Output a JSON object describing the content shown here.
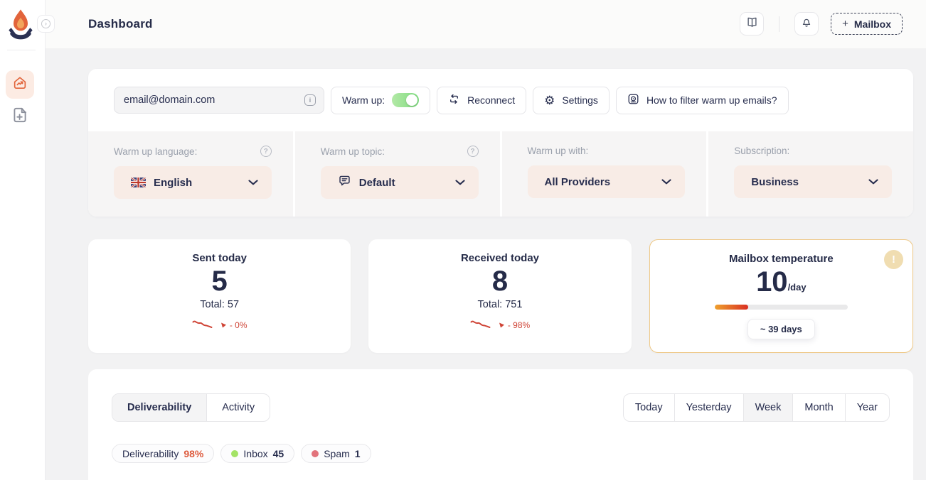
{
  "colors": {
    "accent_orange": "#e2643b",
    "navy_text": "#252b48",
    "toggle_green": "#7fdb80",
    "trend_red": "#cf4436",
    "temperature_border": "#eec886",
    "dropdown_bg": "#f8ece6",
    "inbox_dot": "#a4e366",
    "spam_dot": "#e2737c",
    "deliverability_value": "#dd5a3c"
  },
  "icons": {
    "info_glyph": "i",
    "help_glyph": "?",
    "warning_glyph": "!",
    "collapse_glyph": "›",
    "plus_glyph": "+",
    "gear_glyph": "⚙"
  },
  "sidebar": {
    "items": [
      {
        "icon": "home-analytics",
        "active": true
      },
      {
        "icon": "add-document",
        "active": false
      }
    ]
  },
  "header": {
    "title": "Dashboard",
    "mailbox_plus": "+",
    "mailbox_label": "Mailbox"
  },
  "toolbar": {
    "email": "email@domain.com",
    "warm_up_label": "Warm up:",
    "warm_up_on": true,
    "reconnect_label": "Reconnect",
    "settings_label": "Settings",
    "filter_help_label": "How to filter warm up emails?"
  },
  "settings_row": {
    "columns": [
      {
        "label": "Warm up language:",
        "value": "English",
        "icon": "uk-flag",
        "has_help": true
      },
      {
        "label": "Warm up topic:",
        "value": "Default",
        "icon": "chat-bubble",
        "has_help": true
      },
      {
        "label": "Warm up with:",
        "value": "All Providers",
        "icon": null,
        "has_help": false
      },
      {
        "label": "Subscription:",
        "value": "Business",
        "icon": null,
        "has_help": false
      }
    ]
  },
  "stats": {
    "sent": {
      "title": "Sent today",
      "value": "5",
      "total_label": "Total: 57",
      "trend": "- 0%",
      "trend_direction": "down"
    },
    "received": {
      "title": "Received today",
      "value": "8",
      "total_label": "Total: 751",
      "trend": "- 98%",
      "trend_direction": "down"
    },
    "temperature": {
      "title": "Mailbox temperature",
      "value": "10",
      "unit": "/day",
      "progress_percent": 25,
      "badge": "~ 39 days"
    }
  },
  "panel": {
    "tabs": [
      {
        "label": "Deliverability",
        "active": true
      },
      {
        "label": "Activity",
        "active": false
      }
    ],
    "ranges": [
      {
        "label": "Today"
      },
      {
        "label": "Yesterday"
      },
      {
        "label": "Week",
        "active": true
      },
      {
        "label": "Month"
      },
      {
        "label": "Year"
      }
    ],
    "chips": [
      {
        "label": "Deliverability",
        "value": "98%"
      },
      {
        "label": "Inbox",
        "value": "45",
        "dot": "colors.inbox_dot"
      },
      {
        "label": "Spam",
        "value": "1",
        "dot": "colors.spam_dot"
      }
    ]
  }
}
